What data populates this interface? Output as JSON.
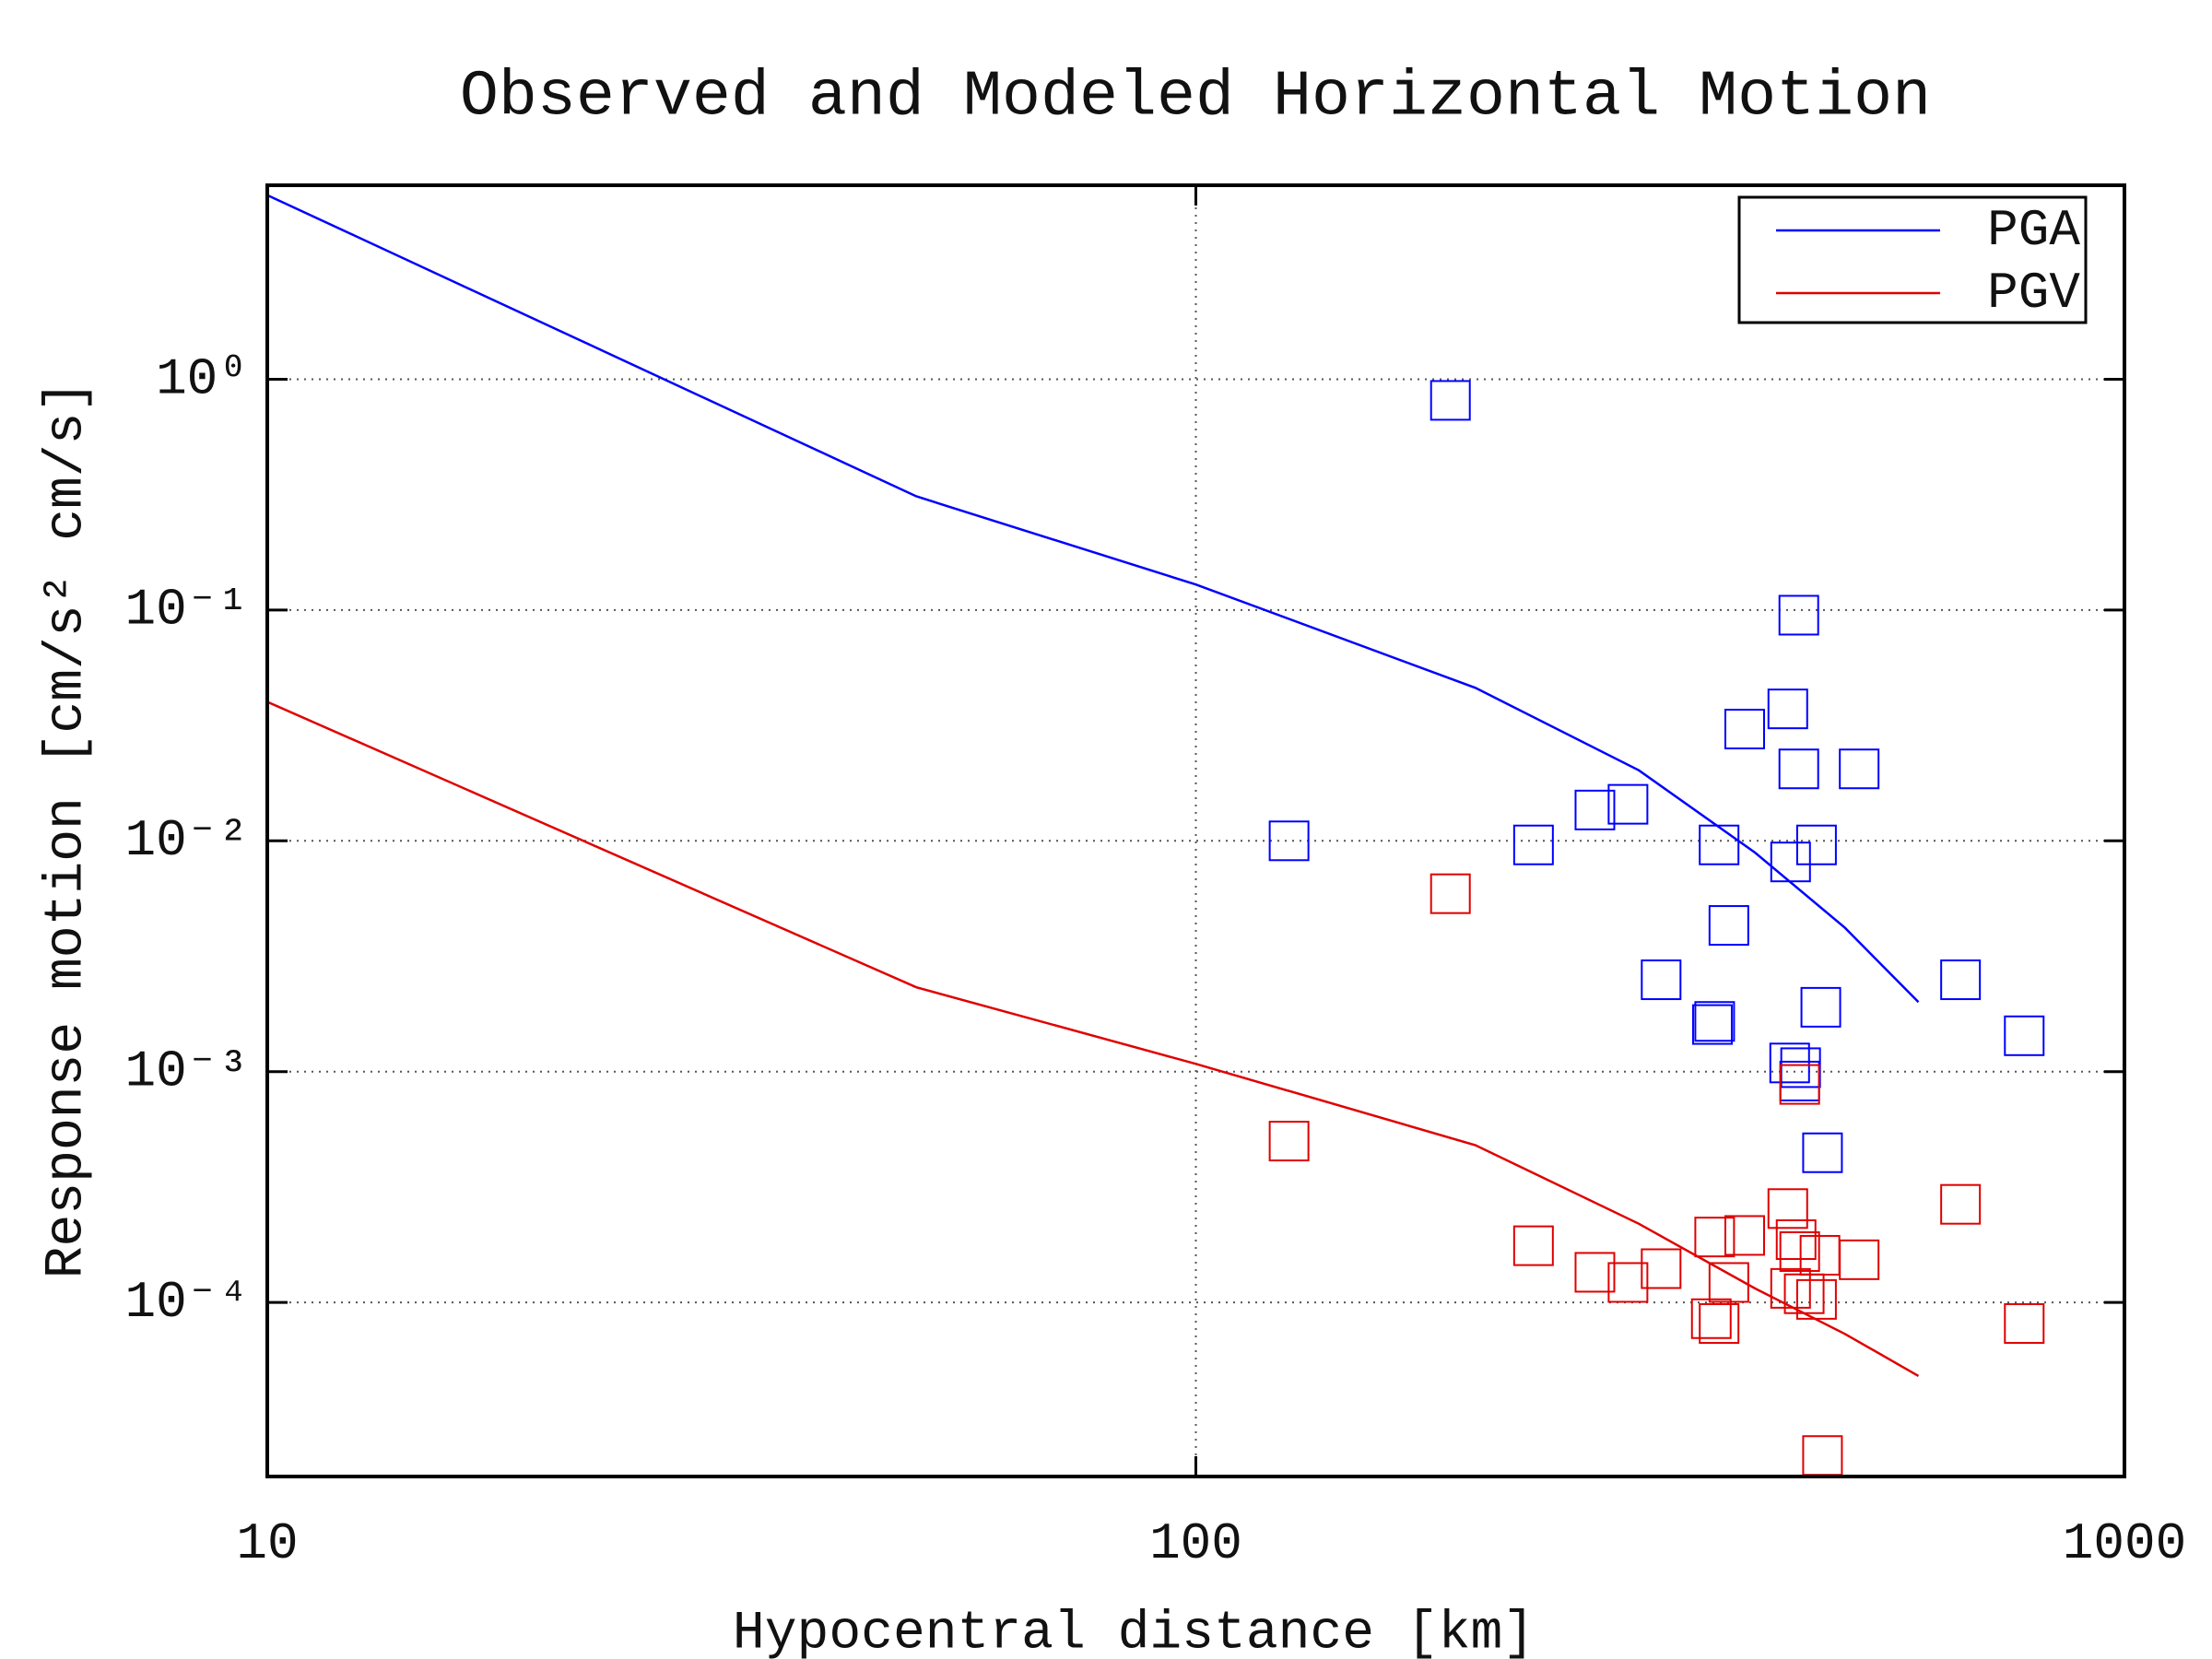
{
  "chart_data": {
    "type": "line",
    "title": "Observed and Modeled Horizontal Motion",
    "x_label": "Hypocentral distance [km]",
    "y_label": "Response motion [cm/s² cm/s]",
    "x_log": true,
    "y_log": true,
    "grid": true,
    "legend": "upper right",
    "xlim": [
      10,
      1000
    ],
    "xticks": [
      10,
      100,
      1000
    ],
    "ylim": [
      1.76e-05,
      6.93
    ],
    "yticks": [
      {
        "value": 1,
        "label": "10⁰"
      },
      {
        "value": 0.1,
        "label": "10⁻¹"
      },
      {
        "value": 0.01,
        "label": "10⁻²"
      },
      {
        "value": 0.001,
        "label": "10⁻³"
      },
      {
        "value": 0.0001,
        "label": "10⁻⁴"
      }
    ],
    "series": [
      {
        "name": "PGA",
        "color": "#0000ff",
        "x": [
          10,
          50,
          100,
          200,
          300,
          400,
          500,
          600
        ],
        "values": [
          6.28,
          0.311,
          0.129,
          0.046,
          0.0202,
          0.0089,
          0.0042,
          0.002
        ],
        "observed_x": [
          188,
          126,
          231,
          269,
          292,
          317,
          360,
          362,
          366,
          375,
          390,
          434,
          437,
          446,
          446,
          466,
          518,
          436,
          448,
          447,
          471,
          473,
          666,
          780
        ],
        "observed_values": [
          0.81,
          0.01,
          0.0096,
          0.0136,
          0.0144,
          0.0025,
          0.0016,
          0.00165,
          0.0096,
          0.0043,
          0.0305,
          0.0373,
          0.0081,
          0.095,
          0.0205,
          0.0096,
          0.0205,
          0.00109,
          0.00104,
          0.00091,
          0.0019,
          0.000445,
          0.0025,
          0.00143
        ]
      },
      {
        "name": "PGV",
        "color": "#e00000",
        "x": [
          10,
          50,
          100,
          200,
          300,
          400,
          500,
          600
        ],
        "values": [
          0.04,
          0.00232,
          0.00108,
          0.00048,
          0.000219,
          0.000115,
          7.3e-05,
          4.8e-05
        ],
        "observed_x": [
          188,
          126,
          231,
          269,
          292,
          317,
          359,
          366,
          362,
          375,
          390,
          434,
          437,
          443,
          447,
          452,
          466,
          470,
          518,
          447,
          473,
          666,
          780
        ],
        "observed_values": [
          0.0059,
          0.0005,
          0.000176,
          0.000135,
          0.000122,
          0.00014,
          8.5e-05,
          8.1e-05,
          0.000192,
          0.000122,
          0.000195,
          0.000255,
          0.000115,
          0.000187,
          0.000166,
          0.000109,
          0.000103,
          0.00016,
          0.000153,
          0.00088,
          2.17e-05,
          0.000266,
          8.1e-05
        ]
      }
    ]
  }
}
